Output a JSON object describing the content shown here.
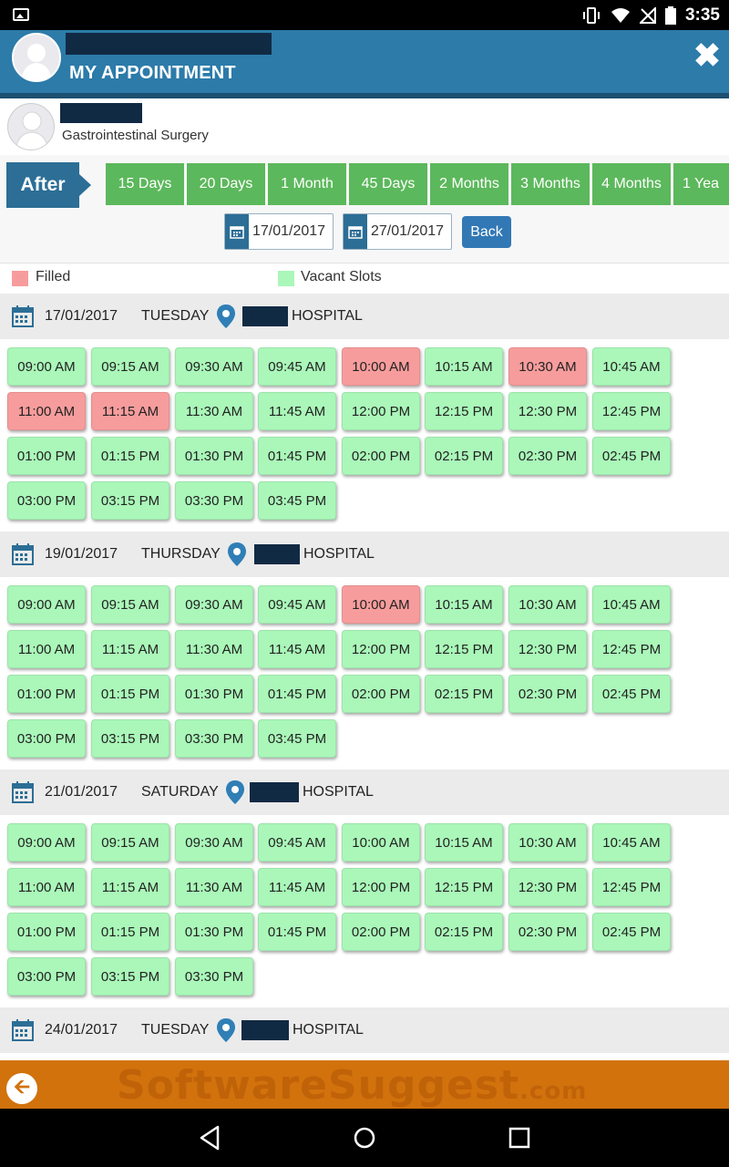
{
  "status_bar": {
    "time": "3:35"
  },
  "header": {
    "title": "MY APPOINTMENT",
    "close_symbol": "✖"
  },
  "doctor": {
    "speciality": "Gastrointestinal Surgery"
  },
  "filter": {
    "after_label": "After",
    "ranges": [
      "15 Days",
      "20 Days",
      "1 Month",
      "45 Days",
      "2 Months",
      "3 Months",
      "4 Months",
      "1 Yea"
    ],
    "from_date": "17/01/2017",
    "to_date": "27/01/2017",
    "back_label": "Back"
  },
  "legend": {
    "filled_label": "Filled",
    "vacant_label": "Vacant Slots",
    "filled_color": "#f79c9c",
    "vacant_color": "#aaf7b9"
  },
  "days": [
    {
      "date": "17/01/2017",
      "weekday": "TUESDAY",
      "hospital": "HOSPITAL",
      "slots": [
        {
          "t": "09:00 AM",
          "s": "vacant"
        },
        {
          "t": "09:15 AM",
          "s": "vacant"
        },
        {
          "t": "09:30 AM",
          "s": "vacant"
        },
        {
          "t": "09:45 AM",
          "s": "vacant"
        },
        {
          "t": "10:00 AM",
          "s": "filled"
        },
        {
          "t": "10:15 AM",
          "s": "vacant"
        },
        {
          "t": "10:30 AM",
          "s": "filled"
        },
        {
          "t": "10:45 AM",
          "s": "vacant"
        },
        {
          "t": "11:00 AM",
          "s": "filled"
        },
        {
          "t": "11:15 AM",
          "s": "filled"
        },
        {
          "t": "11:30 AM",
          "s": "vacant"
        },
        {
          "t": "11:45 AM",
          "s": "vacant"
        },
        {
          "t": "12:00 PM",
          "s": "vacant"
        },
        {
          "t": "12:15 PM",
          "s": "vacant"
        },
        {
          "t": "12:30 PM",
          "s": "vacant"
        },
        {
          "t": "12:45 PM",
          "s": "vacant"
        },
        {
          "t": "01:00 PM",
          "s": "vacant"
        },
        {
          "t": "01:15 PM",
          "s": "vacant"
        },
        {
          "t": "01:30 PM",
          "s": "vacant"
        },
        {
          "t": "01:45 PM",
          "s": "vacant"
        },
        {
          "t": "02:00 PM",
          "s": "vacant"
        },
        {
          "t": "02:15 PM",
          "s": "vacant"
        },
        {
          "t": "02:30 PM",
          "s": "vacant"
        },
        {
          "t": "02:45 PM",
          "s": "vacant"
        },
        {
          "t": "03:00 PM",
          "s": "vacant"
        },
        {
          "t": "03:15 PM",
          "s": "vacant"
        },
        {
          "t": "03:30 PM",
          "s": "vacant"
        },
        {
          "t": "03:45 PM",
          "s": "vacant"
        }
      ]
    },
    {
      "date": "19/01/2017",
      "weekday": "THURSDAY",
      "hospital": "HOSPITAL",
      "slots": [
        {
          "t": "09:00 AM",
          "s": "vacant"
        },
        {
          "t": "09:15 AM",
          "s": "vacant"
        },
        {
          "t": "09:30 AM",
          "s": "vacant"
        },
        {
          "t": "09:45 AM",
          "s": "vacant"
        },
        {
          "t": "10:00 AM",
          "s": "filled"
        },
        {
          "t": "10:15 AM",
          "s": "vacant"
        },
        {
          "t": "10:30 AM",
          "s": "vacant"
        },
        {
          "t": "10:45 AM",
          "s": "vacant"
        },
        {
          "t": "11:00 AM",
          "s": "vacant"
        },
        {
          "t": "11:15 AM",
          "s": "vacant"
        },
        {
          "t": "11:30 AM",
          "s": "vacant"
        },
        {
          "t": "11:45 AM",
          "s": "vacant"
        },
        {
          "t": "12:00 PM",
          "s": "vacant"
        },
        {
          "t": "12:15 PM",
          "s": "vacant"
        },
        {
          "t": "12:30 PM",
          "s": "vacant"
        },
        {
          "t": "12:45 PM",
          "s": "vacant"
        },
        {
          "t": "01:00 PM",
          "s": "vacant"
        },
        {
          "t": "01:15 PM",
          "s": "vacant"
        },
        {
          "t": "01:30 PM",
          "s": "vacant"
        },
        {
          "t": "01:45 PM",
          "s": "vacant"
        },
        {
          "t": "02:00 PM",
          "s": "vacant"
        },
        {
          "t": "02:15 PM",
          "s": "vacant"
        },
        {
          "t": "02:30 PM",
          "s": "vacant"
        },
        {
          "t": "02:45 PM",
          "s": "vacant"
        },
        {
          "t": "03:00 PM",
          "s": "vacant"
        },
        {
          "t": "03:15 PM",
          "s": "vacant"
        },
        {
          "t": "03:30 PM",
          "s": "vacant"
        },
        {
          "t": "03:45 PM",
          "s": "vacant"
        }
      ]
    },
    {
      "date": "21/01/2017",
      "weekday": "SATURDAY",
      "hospital": "HOSPITAL",
      "slots": [
        {
          "t": "09:00 AM",
          "s": "vacant"
        },
        {
          "t": "09:15 AM",
          "s": "vacant"
        },
        {
          "t": "09:30 AM",
          "s": "vacant"
        },
        {
          "t": "09:45 AM",
          "s": "vacant"
        },
        {
          "t": "10:00 AM",
          "s": "vacant"
        },
        {
          "t": "10:15 AM",
          "s": "vacant"
        },
        {
          "t": "10:30 AM",
          "s": "vacant"
        },
        {
          "t": "10:45 AM",
          "s": "vacant"
        },
        {
          "t": "11:00 AM",
          "s": "vacant"
        },
        {
          "t": "11:15 AM",
          "s": "vacant"
        },
        {
          "t": "11:30 AM",
          "s": "vacant"
        },
        {
          "t": "11:45 AM",
          "s": "vacant"
        },
        {
          "t": "12:00 PM",
          "s": "vacant"
        },
        {
          "t": "12:15 PM",
          "s": "vacant"
        },
        {
          "t": "12:30 PM",
          "s": "vacant"
        },
        {
          "t": "12:45 PM",
          "s": "vacant"
        },
        {
          "t": "01:00 PM",
          "s": "vacant"
        },
        {
          "t": "01:15 PM",
          "s": "vacant"
        },
        {
          "t": "01:30 PM",
          "s": "vacant"
        },
        {
          "t": "01:45 PM",
          "s": "vacant"
        },
        {
          "t": "02:00 PM",
          "s": "vacant"
        },
        {
          "t": "02:15 PM",
          "s": "vacant"
        },
        {
          "t": "02:30 PM",
          "s": "vacant"
        },
        {
          "t": "02:45 PM",
          "s": "vacant"
        },
        {
          "t": "03:00 PM",
          "s": "vacant"
        },
        {
          "t": "03:15 PM",
          "s": "vacant"
        },
        {
          "t": "03:30 PM",
          "s": "vacant"
        }
      ]
    },
    {
      "date": "24/01/2017",
      "weekday": "TUESDAY",
      "hospital": "HOSPITAL",
      "slots": []
    }
  ],
  "watermark": {
    "main": "SoftwareSuggest",
    "suffix": ".com"
  }
}
